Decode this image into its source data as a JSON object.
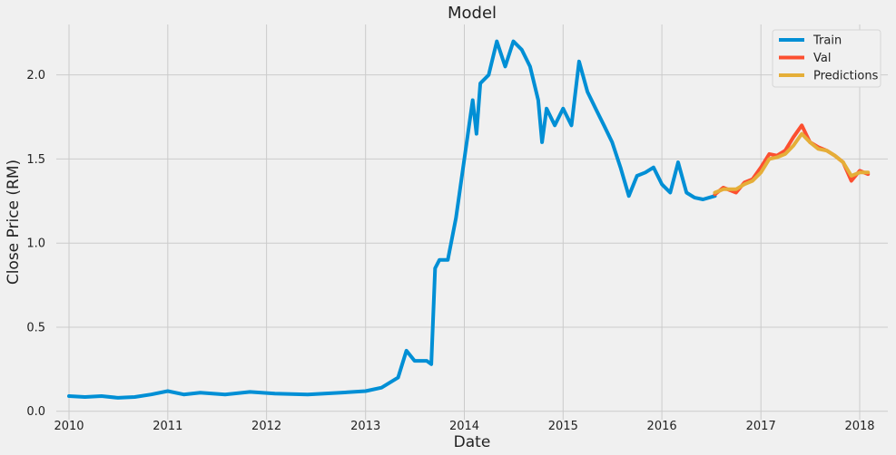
{
  "chart_data": {
    "type": "line",
    "title": "Model",
    "xlabel": "Date",
    "ylabel": "Close Price (RM)",
    "xlim": [
      "2009-11-15",
      "2018-04-15"
    ],
    "ylim": [
      -0.05,
      2.3
    ],
    "x_ticks": [
      "2010",
      "2011",
      "2012",
      "2013",
      "2014",
      "2015",
      "2016",
      "2017",
      "2018"
    ],
    "x_tick_dates": [
      "2010-01-01",
      "2011-01-01",
      "2012-01-01",
      "2013-01-01",
      "2014-01-01",
      "2015-01-01",
      "2016-01-01",
      "2017-01-01",
      "2018-01-01"
    ],
    "y_ticks": [
      0.0,
      0.5,
      1.0,
      1.5,
      2.0
    ],
    "y_tick_labels": [
      "0.0",
      "0.5",
      "1.0",
      "1.5",
      "2.0"
    ],
    "grid": true,
    "legend_position": "top-right",
    "series": [
      {
        "name": "Train",
        "color": "#008fd5",
        "points": [
          [
            "2010-01-01",
            0.09
          ],
          [
            "2010-03-01",
            0.085
          ],
          [
            "2010-05-01",
            0.09
          ],
          [
            "2010-07-01",
            0.08
          ],
          [
            "2010-09-01",
            0.085
          ],
          [
            "2010-11-01",
            0.1
          ],
          [
            "2011-01-01",
            0.12
          ],
          [
            "2011-03-01",
            0.1
          ],
          [
            "2011-05-01",
            0.11
          ],
          [
            "2011-08-01",
            0.1
          ],
          [
            "2011-11-01",
            0.115
          ],
          [
            "2012-02-01",
            0.105
          ],
          [
            "2012-06-01",
            0.1
          ],
          [
            "2012-10-01",
            0.11
          ],
          [
            "2013-01-01",
            0.12
          ],
          [
            "2013-03-01",
            0.14
          ],
          [
            "2013-05-01",
            0.2
          ],
          [
            "2013-06-01",
            0.36
          ],
          [
            "2013-07-01",
            0.3
          ],
          [
            "2013-08-15",
            0.3
          ],
          [
            "2013-09-01",
            0.28
          ],
          [
            "2013-09-15",
            0.85
          ],
          [
            "2013-10-01",
            0.9
          ],
          [
            "2013-11-01",
            0.9
          ],
          [
            "2013-12-01",
            1.15
          ],
          [
            "2014-01-01",
            1.5
          ],
          [
            "2014-02-01",
            1.85
          ],
          [
            "2014-02-15",
            1.65
          ],
          [
            "2014-03-01",
            1.95
          ],
          [
            "2014-04-01",
            2.0
          ],
          [
            "2014-05-01",
            2.2
          ],
          [
            "2014-06-01",
            2.05
          ],
          [
            "2014-07-01",
            2.2
          ],
          [
            "2014-08-01",
            2.15
          ],
          [
            "2014-09-01",
            2.05
          ],
          [
            "2014-10-01",
            1.85
          ],
          [
            "2014-10-15",
            1.6
          ],
          [
            "2014-11-01",
            1.8
          ],
          [
            "2014-12-01",
            1.7
          ],
          [
            "2015-01-01",
            1.8
          ],
          [
            "2015-02-01",
            1.7
          ],
          [
            "2015-03-01",
            2.08
          ],
          [
            "2015-04-01",
            1.9
          ],
          [
            "2015-05-01",
            1.8
          ],
          [
            "2015-06-01",
            1.7
          ],
          [
            "2015-07-01",
            1.6
          ],
          [
            "2015-08-01",
            1.45
          ],
          [
            "2015-09-01",
            1.28
          ],
          [
            "2015-10-01",
            1.4
          ],
          [
            "2015-11-01",
            1.42
          ],
          [
            "2015-12-01",
            1.45
          ],
          [
            "2016-01-01",
            1.35
          ],
          [
            "2016-02-01",
            1.3
          ],
          [
            "2016-03-01",
            1.48
          ],
          [
            "2016-04-01",
            1.3
          ],
          [
            "2016-05-01",
            1.27
          ],
          [
            "2016-06-01",
            1.26
          ],
          [
            "2016-07-15",
            1.28
          ]
        ]
      },
      {
        "name": "Val",
        "color": "#fc4f30",
        "points": [
          [
            "2016-07-15",
            1.29
          ],
          [
            "2016-08-15",
            1.33
          ],
          [
            "2016-10-01",
            1.3
          ],
          [
            "2016-11-01",
            1.36
          ],
          [
            "2016-12-01",
            1.38
          ],
          [
            "2017-01-01",
            1.45
          ],
          [
            "2017-02-01",
            1.53
          ],
          [
            "2017-03-01",
            1.52
          ],
          [
            "2017-04-01",
            1.55
          ],
          [
            "2017-05-01",
            1.63
          ],
          [
            "2017-06-01",
            1.7
          ],
          [
            "2017-07-01",
            1.6
          ],
          [
            "2017-08-01",
            1.57
          ],
          [
            "2017-09-01",
            1.55
          ],
          [
            "2017-10-01",
            1.52
          ],
          [
            "2017-11-01",
            1.48
          ],
          [
            "2017-12-01",
            1.37
          ],
          [
            "2018-01-01",
            1.43
          ],
          [
            "2018-02-01",
            1.41
          ]
        ]
      },
      {
        "name": "Predictions",
        "color": "#e5ae38",
        "points": [
          [
            "2016-07-15",
            1.3
          ],
          [
            "2016-08-15",
            1.32
          ],
          [
            "2016-10-01",
            1.32
          ],
          [
            "2016-11-01",
            1.35
          ],
          [
            "2016-12-01",
            1.37
          ],
          [
            "2017-01-01",
            1.42
          ],
          [
            "2017-02-01",
            1.5
          ],
          [
            "2017-03-01",
            1.51
          ],
          [
            "2017-04-01",
            1.53
          ],
          [
            "2017-05-01",
            1.58
          ],
          [
            "2017-06-01",
            1.65
          ],
          [
            "2017-07-01",
            1.6
          ],
          [
            "2017-08-01",
            1.56
          ],
          [
            "2017-09-01",
            1.55
          ],
          [
            "2017-10-01",
            1.52
          ],
          [
            "2017-11-01",
            1.48
          ],
          [
            "2017-12-01",
            1.4
          ],
          [
            "2018-01-01",
            1.42
          ],
          [
            "2018-02-01",
            1.42
          ]
        ]
      }
    ]
  }
}
